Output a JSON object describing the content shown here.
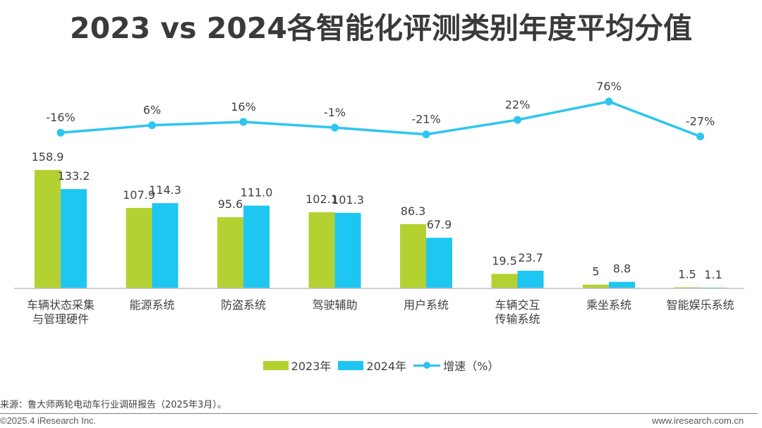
{
  "chart_data": {
    "type": "bar",
    "title": "2023 vs 2024各智能化评测类别年度平均分值",
    "categories": [
      [
        "车辆状态采集",
        "与管理硬件"
      ],
      [
        "能源系统"
      ],
      [
        "防盗系统"
      ],
      [
        "驾驶辅助"
      ],
      [
        "用户系统"
      ],
      [
        "车辆交互",
        "传输系统"
      ],
      [
        "乘坐系统"
      ],
      [
        "智能娱乐系统"
      ]
    ],
    "series": [
      {
        "name": "2023年",
        "type": "bar",
        "color": "#b3d232",
        "values": [
          158.9,
          107.9,
          95.6,
          102.1,
          86.3,
          19.5,
          5,
          1.5
        ],
        "labels": [
          "158.9",
          "107.9",
          "95.6",
          "102.1",
          "86.3",
          "19.5",
          "5",
          "1.5"
        ]
      },
      {
        "name": "2024年",
        "type": "bar",
        "color": "#1ec6f2",
        "values": [
          133.2,
          114.3,
          111.0,
          101.3,
          67.9,
          23.7,
          8.8,
          1.1
        ],
        "labels": [
          "133.2",
          "114.3",
          "111.0",
          "101.3",
          "67.9",
          "23.7",
          "8.8",
          "1.1"
        ]
      },
      {
        "name": "增速（%）",
        "type": "line",
        "color": "#2ec5f0",
        "values": [
          -16,
          6,
          16,
          -1,
          -21,
          22,
          76,
          -27
        ],
        "labels": [
          "-16%",
          "6%",
          "16%",
          "-1%",
          "-21%",
          "22%",
          "76%",
          "-27%"
        ]
      }
    ],
    "ylim": [
      0,
      160
    ],
    "y2lim": [
      -100,
      100
    ],
    "legend": "bottom-center",
    "grid": false
  },
  "legend": {
    "bar2023": "2023年",
    "bar2024": "2024年",
    "growth": "增速（%）"
  },
  "footer": {
    "source": "来源：鲁大师两轮电动车行业调研报告（2025年3月）。",
    "copyright": "©2025.4 iResearch Inc.",
    "website": "www.iresearch.com.cn"
  }
}
